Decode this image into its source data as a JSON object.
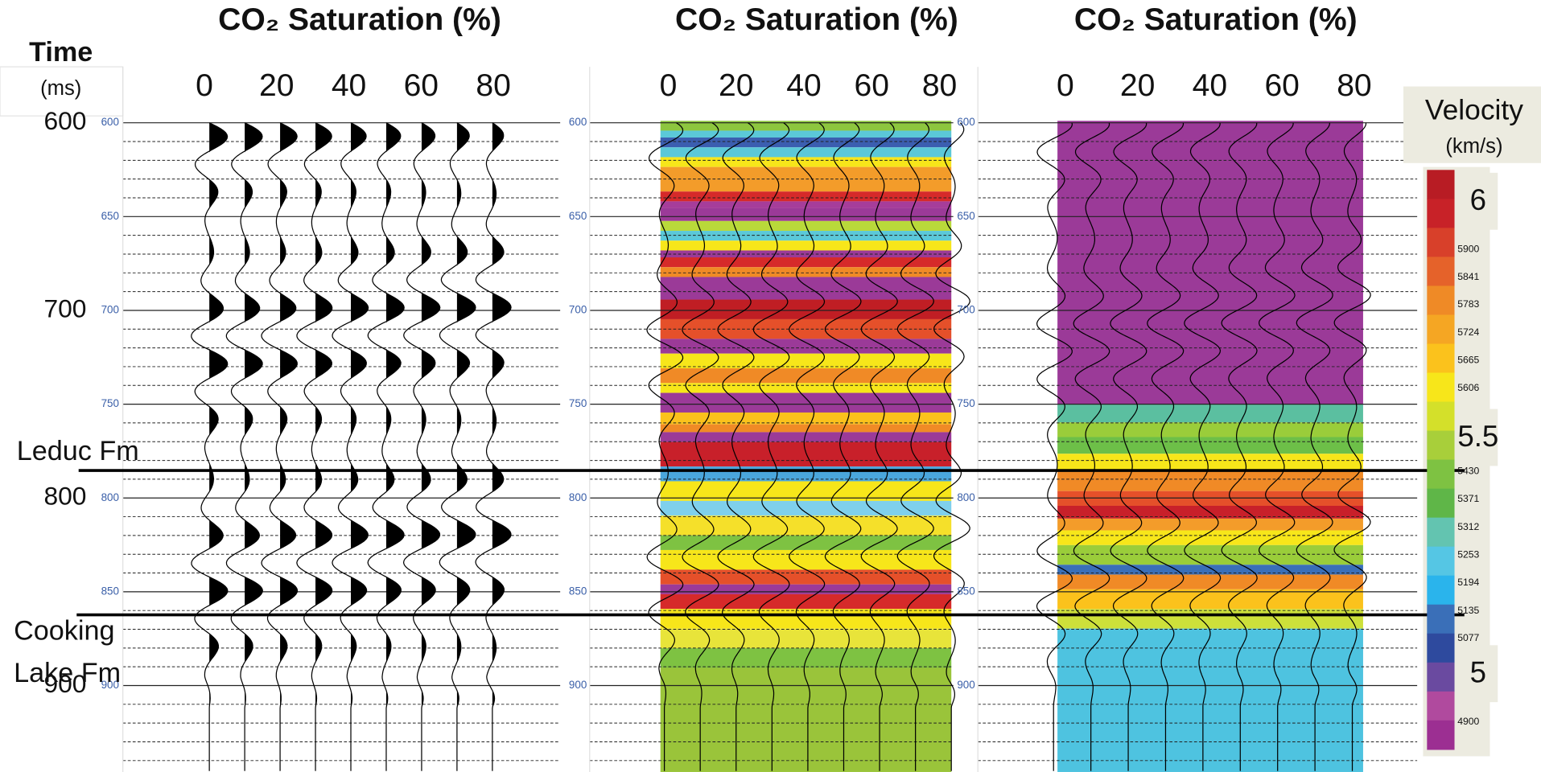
{
  "panels": [
    {
      "title": "CO₂ Saturation (%)",
      "xticks": [
        0,
        20,
        40,
        60,
        80
      ],
      "time_ticks": [
        600,
        650,
        700,
        750,
        800,
        850,
        900
      ]
    },
    {
      "title": "CO₂ Saturation (%)",
      "xticks": [
        0,
        20,
        40,
        60,
        80
      ],
      "time_ticks": [
        600,
        650,
        700,
        750,
        800,
        850,
        900
      ]
    },
    {
      "title": "CO₂ Saturation (%)",
      "xticks": [
        0,
        20,
        40,
        60,
        80
      ],
      "time_ticks": [
        600,
        650,
        700,
        750,
        800,
        850,
        900
      ]
    }
  ],
  "time_axis": {
    "title": "Time",
    "unit": "(ms)",
    "ticks": [
      600,
      700,
      800,
      900
    ]
  },
  "formations": {
    "leduc": "Leduc Fm",
    "cooking_lake": [
      "Cooking",
      "Lake Fm"
    ]
  },
  "colorbar": {
    "title": "Velocity",
    "unit": "(km/s)",
    "major_labels": [
      6,
      5.5,
      5
    ],
    "minor_labels": [
      5900,
      5841,
      5783,
      5724,
      5665,
      5606,
      5430,
      5371,
      5312,
      5253,
      5194,
      5135,
      5077,
      4900
    ]
  }
}
